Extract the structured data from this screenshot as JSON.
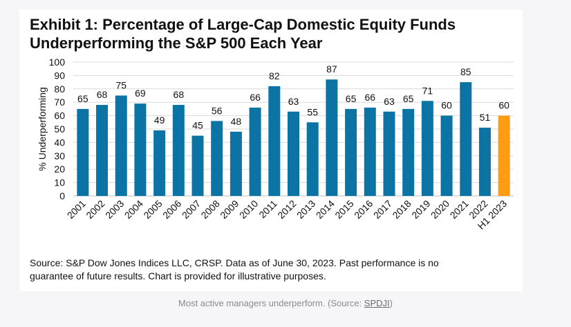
{
  "title_line1": "Exhibit 1: Percentage of Large-Cap Domestic Equity Funds",
  "title_line2": "Underperforming the S&P 500 Each Year",
  "source_line1": "Source: S&P Dow Jones Indices LLC, CRSP.  Data as of June 30, 2023.  Past performance is no",
  "source_line2": "guarantee of future results.  Chart is provided for illustrative purposes.",
  "caption_text": "Most active managers underperform. (Source: ",
  "caption_link": "SPDJI",
  "caption_end": ")",
  "colors": {
    "bar": "#0b74a5",
    "highlight": "#ff9c12"
  },
  "chart_data": {
    "type": "bar",
    "categories": [
      "2001",
      "2002",
      "2003",
      "2004",
      "2005",
      "2006",
      "2007",
      "2008",
      "2009",
      "2010",
      "2011",
      "2012",
      "2013",
      "2014",
      "2015",
      "2016",
      "2017",
      "2018",
      "2019",
      "2020",
      "2021",
      "2022",
      "H1 2023"
    ],
    "values": [
      65,
      68,
      75,
      69,
      49,
      68,
      45,
      56,
      48,
      66,
      82,
      63,
      55,
      87,
      65,
      66,
      63,
      65,
      71,
      60,
      85,
      51,
      60
    ],
    "highlight_index": 22,
    "ylabel": "% Underperforming",
    "xlabel": "",
    "ylim": [
      0,
      100
    ],
    "yticks": [
      0,
      10,
      20,
      30,
      40,
      50,
      60,
      70,
      80,
      90,
      100
    ],
    "grid": true,
    "data_labels": true
  }
}
